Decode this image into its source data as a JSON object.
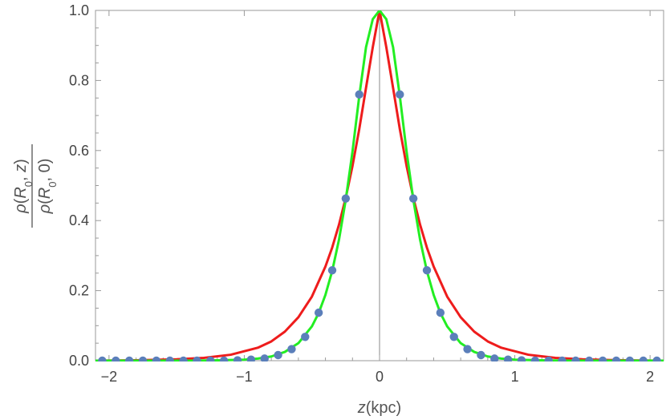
{
  "chart_data": {
    "type": "line",
    "xlabel": "z(kpc)",
    "ylabel": {
      "numerator": "ρ(R0, z)",
      "denominator": "ρ(R0, 0)"
    },
    "xlim": [
      -2.1,
      2.1
    ],
    "ylim": [
      0,
      1.0
    ],
    "x_ticks": [
      -2,
      -1,
      0,
      1,
      2
    ],
    "x_tick_labels": [
      "−2",
      "−1",
      "0",
      "1",
      "2"
    ],
    "y_ticks": [
      0.0,
      0.2,
      0.4,
      0.6,
      0.8,
      1.0
    ],
    "y_tick_labels": [
      "0.0",
      "0.2",
      "0.4",
      "0.6",
      "0.8",
      "1.0"
    ],
    "grid": false,
    "vertical_reference_line_x": 0,
    "series": [
      {
        "style": "points",
        "color": "#5b7fba",
        "points": [
          [
            -2.05,
            0.0
          ],
          [
            -1.95,
            0.0
          ],
          [
            -1.85,
            0.0
          ],
          [
            -1.75,
            0.0
          ],
          [
            -1.65,
            0.0
          ],
          [
            -1.55,
            0.0
          ],
          [
            -1.45,
            0.0
          ],
          [
            -1.35,
            0.0
          ],
          [
            -1.25,
            0.0
          ],
          [
            -1.15,
            0.0
          ],
          [
            -1.05,
            0.001
          ],
          [
            -0.95,
            0.003
          ],
          [
            -0.85,
            0.006
          ],
          [
            -0.75,
            0.016
          ],
          [
            -0.65,
            0.033
          ],
          [
            -0.55,
            0.068
          ],
          [
            -0.45,
            0.137
          ],
          [
            -0.35,
            0.258
          ],
          [
            -0.25,
            0.463
          ],
          [
            -0.15,
            0.76
          ],
          [
            0.15,
            0.76
          ],
          [
            0.25,
            0.463
          ],
          [
            0.35,
            0.258
          ],
          [
            0.45,
            0.137
          ],
          [
            0.55,
            0.068
          ],
          [
            0.65,
            0.033
          ],
          [
            0.75,
            0.016
          ],
          [
            0.85,
            0.006
          ],
          [
            0.95,
            0.003
          ],
          [
            1.05,
            0.001
          ],
          [
            1.15,
            0.0
          ],
          [
            1.25,
            0.0
          ],
          [
            1.35,
            0.0
          ],
          [
            1.45,
            0.0
          ],
          [
            1.55,
            0.0
          ],
          [
            1.65,
            0.0
          ],
          [
            1.75,
            0.0
          ],
          [
            1.85,
            0.0
          ],
          [
            1.95,
            0.0
          ],
          [
            2.05,
            0.0
          ]
        ]
      },
      {
        "style": "line",
        "color": "#ee1c1c",
        "points": [
          [
            -2.1,
            0.0
          ],
          [
            -1.8,
            0.001
          ],
          [
            -1.5,
            0.004
          ],
          [
            -1.3,
            0.008
          ],
          [
            -1.1,
            0.017
          ],
          [
            -0.9,
            0.037
          ],
          [
            -0.8,
            0.055
          ],
          [
            -0.7,
            0.083
          ],
          [
            -0.6,
            0.124
          ],
          [
            -0.5,
            0.183
          ],
          [
            -0.4,
            0.269
          ],
          [
            -0.35,
            0.323
          ],
          [
            -0.3,
            0.388
          ],
          [
            -0.25,
            0.465
          ],
          [
            -0.2,
            0.556
          ],
          [
            -0.15,
            0.661
          ],
          [
            -0.1,
            0.779
          ],
          [
            -0.05,
            0.895
          ],
          [
            0.0,
            1.0
          ],
          [
            0.05,
            0.895
          ],
          [
            0.1,
            0.779
          ],
          [
            0.15,
            0.661
          ],
          [
            0.2,
            0.556
          ],
          [
            0.25,
            0.465
          ],
          [
            0.3,
            0.388
          ],
          [
            0.35,
            0.323
          ],
          [
            0.4,
            0.269
          ],
          [
            0.5,
            0.183
          ],
          [
            0.6,
            0.124
          ],
          [
            0.7,
            0.083
          ],
          [
            0.8,
            0.055
          ],
          [
            0.9,
            0.037
          ],
          [
            1.1,
            0.017
          ],
          [
            1.3,
            0.008
          ],
          [
            1.5,
            0.004
          ],
          [
            1.8,
            0.001
          ],
          [
            2.1,
            0.0
          ]
        ]
      },
      {
        "style": "line",
        "color": "#22ee22",
        "points": [
          [
            -2.1,
            0.0
          ],
          [
            -1.4,
            0.0
          ],
          [
            -1.2,
            0.001
          ],
          [
            -1.0,
            0.003
          ],
          [
            -0.9,
            0.006
          ],
          [
            -0.8,
            0.012
          ],
          [
            -0.7,
            0.025
          ],
          [
            -0.6,
            0.05
          ],
          [
            -0.5,
            0.098
          ],
          [
            -0.45,
            0.136
          ],
          [
            -0.4,
            0.188
          ],
          [
            -0.35,
            0.256
          ],
          [
            -0.3,
            0.345
          ],
          [
            -0.25,
            0.459
          ],
          [
            -0.2,
            0.597
          ],
          [
            -0.15,
            0.755
          ],
          [
            -0.1,
            0.895
          ],
          [
            -0.05,
            0.975
          ],
          [
            0.0,
            1.0
          ],
          [
            0.05,
            0.975
          ],
          [
            0.1,
            0.895
          ],
          [
            0.15,
            0.755
          ],
          [
            0.2,
            0.597
          ],
          [
            0.25,
            0.459
          ],
          [
            0.3,
            0.345
          ],
          [
            0.35,
            0.256
          ],
          [
            0.4,
            0.188
          ],
          [
            0.45,
            0.136
          ],
          [
            0.5,
            0.098
          ],
          [
            0.6,
            0.05
          ],
          [
            0.7,
            0.025
          ],
          [
            0.8,
            0.012
          ],
          [
            0.9,
            0.006
          ],
          [
            1.0,
            0.003
          ],
          [
            1.2,
            0.001
          ],
          [
            1.4,
            0.0
          ],
          [
            2.1,
            0.0
          ]
        ]
      }
    ]
  }
}
